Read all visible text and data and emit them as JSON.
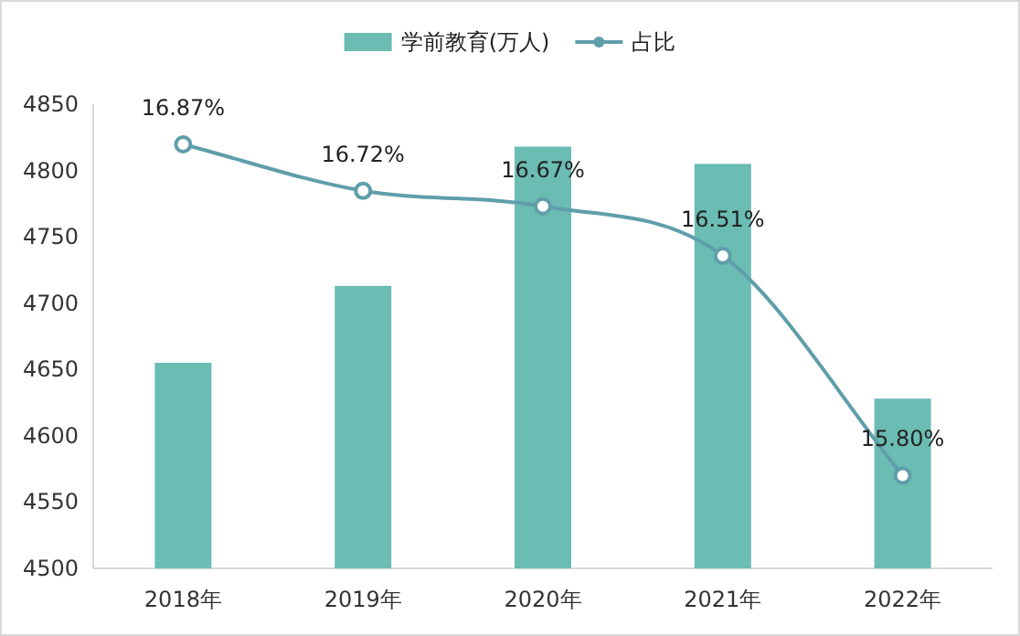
{
  "chart_data": {
    "type": "bar",
    "categories": [
      "2018年",
      "2019年",
      "2020年",
      "2021年",
      "2022年"
    ],
    "series": [
      {
        "name": "学前教育(万人)",
        "color": "#6bbcb3",
        "values": [
          4655,
          4713,
          4818,
          4805,
          4628
        ]
      },
      {
        "name": "占比",
        "type": "line",
        "axis": "y2",
        "color": "#5f9eaa",
        "values": [
          16.87,
          16.72,
          16.67,
          16.51,
          15.8
        ],
        "value_labels": [
          "16.87%",
          "16.72%",
          "16.67%",
          "16.51%",
          "15.80%"
        ]
      }
    ],
    "ylim": [
      4500,
      4850
    ],
    "yticks": [
      4500,
      4550,
      4600,
      4650,
      4700,
      4750,
      4800,
      4850
    ],
    "y2lim": [
      15.5,
      17.0
    ],
    "legend": "top",
    "marker": "circle",
    "line_style": "solid",
    "grid": false
  }
}
